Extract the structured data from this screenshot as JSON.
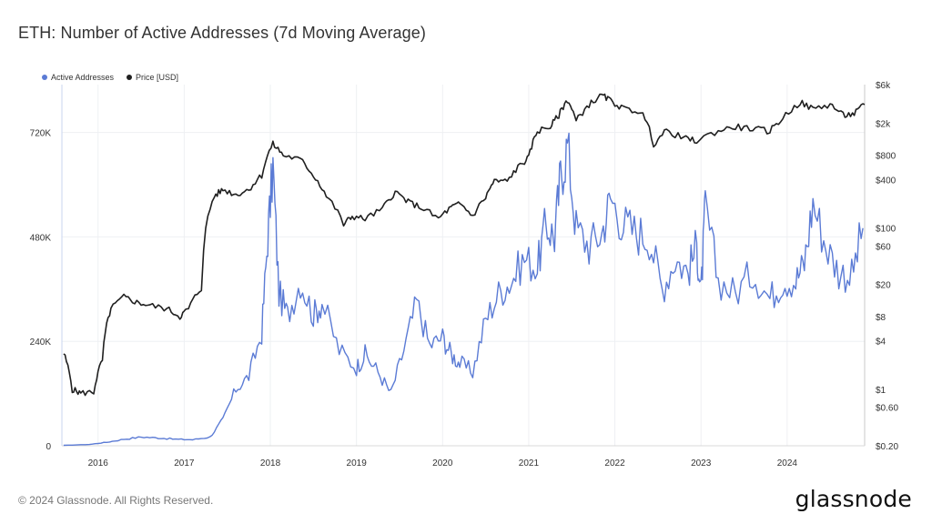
{
  "title": "ETH: Number of Active Addresses (7d Moving Average)",
  "footer": "© 2024 Glassnode. All Rights Reserved.",
  "logo": "glassnode",
  "colors": {
    "active_addresses": "#5b7bd5",
    "price": "#1f1f1f",
    "grid": "#eef0f3"
  },
  "chart_data": {
    "type": "line",
    "legend": [
      {
        "name": "Active Addresses",
        "color": "#5b7bd5"
      },
      {
        "name": "Price [USD]",
        "color": "#1f1f1f"
      }
    ],
    "legend_position": "top-left",
    "x_ticks": [
      "2016",
      "2017",
      "2018",
      "2019",
      "2020",
      "2021",
      "2022",
      "2023",
      "2024"
    ],
    "x_range": [
      2015.58,
      2024.9
    ],
    "left_axis": {
      "ticks": [
        {
          "value": 0,
          "label": "0"
        },
        {
          "value": 240000,
          "label": "240K"
        },
        {
          "value": 480000,
          "label": "480K"
        },
        {
          "value": 720000,
          "label": "720K"
        }
      ],
      "range": [
        0,
        830000
      ]
    },
    "right_axis": {
      "scale": "log",
      "range": [
        0.2,
        6000
      ],
      "ticks": [
        {
          "value": 0.2,
          "label": "$0.20"
        },
        {
          "value": 0.6,
          "label": "$0.60"
        },
        {
          "value": 1,
          "label": "$1"
        },
        {
          "value": 4,
          "label": "$4"
        },
        {
          "value": 8,
          "label": "$8"
        },
        {
          "value": 20,
          "label": "$20"
        },
        {
          "value": 60,
          "label": "$60"
        },
        {
          "value": 100,
          "label": "$100"
        },
        {
          "value": 400,
          "label": "$400"
        },
        {
          "value": 800,
          "label": "$800"
        },
        {
          "value": 2000,
          "label": "$2k"
        },
        {
          "value": 6000,
          "label": "$6k"
        }
      ]
    },
    "grid": true,
    "series": [
      {
        "name": "Active Addresses",
        "axis": "left",
        "x": [
          2015.6,
          2015.9,
          2016.1,
          2016.3,
          2016.5,
          2016.7,
          2016.9,
          2017.1,
          2017.3,
          2017.45,
          2017.6,
          2017.75,
          2017.9,
          2017.97,
          2018.03,
          2018.1,
          2018.2,
          2018.35,
          2018.5,
          2018.6,
          2018.8,
          2019.0,
          2019.1,
          2019.25,
          2019.4,
          2019.55,
          2019.7,
          2019.85,
          2020.0,
          2020.1,
          2020.2,
          2020.35,
          2020.5,
          2020.65,
          2020.8,
          2020.95,
          2021.1,
          2021.2,
          2021.3,
          2021.37,
          2021.45,
          2021.55,
          2021.7,
          2021.85,
          2021.95,
          2022.1,
          2022.25,
          2022.4,
          2022.55,
          2022.7,
          2022.85,
          2022.95,
          2023.0,
          2023.05,
          2023.2,
          2023.4,
          2023.6,
          2023.8,
          2023.95,
          2024.1,
          2024.2,
          2024.3,
          2024.45,
          2024.6,
          2024.75,
          2024.88
        ],
        "values": [
          1000,
          3000,
          8000,
          15000,
          20000,
          18000,
          15000,
          14000,
          20000,
          60000,
          130000,
          160000,
          260000,
          480000,
          640000,
          350000,
          300000,
          380000,
          300000,
          330000,
          220000,
          180000,
          210000,
          170000,
          120000,
          220000,
          330000,
          230000,
          250000,
          210000,
          190000,
          170000,
          290000,
          350000,
          380000,
          430000,
          410000,
          510000,
          480000,
          620000,
          690000,
          500000,
          460000,
          490000,
          570000,
          510000,
          490000,
          480000,
          360000,
          430000,
          400000,
          460000,
          350000,
          550000,
          380000,
          350000,
          400000,
          340000,
          380000,
          380000,
          420000,
          560000,
          460000,
          400000,
          390000,
          500000
        ]
      },
      {
        "name": "Price [USD]",
        "axis": "right",
        "x": [
          2015.6,
          2015.7,
          2015.8,
          2015.95,
          2016.05,
          2016.15,
          2016.3,
          2016.45,
          2016.6,
          2016.8,
          2016.95,
          2017.05,
          2017.2,
          2017.35,
          2017.45,
          2017.6,
          2017.75,
          2017.9,
          2018.03,
          2018.15,
          2018.35,
          2018.5,
          2018.65,
          2018.85,
          2018.95,
          2019.1,
          2019.3,
          2019.45,
          2019.6,
          2019.75,
          2019.95,
          2020.1,
          2020.2,
          2020.35,
          2020.5,
          2020.6,
          2020.75,
          2020.9,
          2021.0,
          2021.1,
          2021.25,
          2021.35,
          2021.45,
          2021.55,
          2021.7,
          2021.85,
          2021.95,
          2022.1,
          2022.3,
          2022.45,
          2022.6,
          2022.8,
          2022.95,
          2023.2,
          2023.4,
          2023.6,
          2023.8,
          2023.95,
          2024.15,
          2024.3,
          2024.5,
          2024.65,
          2024.78,
          2024.9
        ],
        "values": [
          2.8,
          1.0,
          0.9,
          0.93,
          2.3,
          10,
          14,
          12,
          11,
          10,
          8,
          10,
          18,
          250,
          300,
          260,
          300,
          450,
          1100,
          800,
          700,
          450,
          250,
          110,
          140,
          130,
          170,
          280,
          210,
          180,
          130,
          180,
          200,
          140,
          240,
          380,
          380,
          600,
          740,
          1600,
          1800,
          2500,
          3900,
          2100,
          3400,
          4400,
          3800,
          3000,
          2800,
          1100,
          1600,
          1300,
          1200,
          1600,
          1800,
          1700,
          1600,
          2300,
          3600,
          3000,
          3400,
          2500,
          2600,
          3400
        ]
      }
    ]
  }
}
